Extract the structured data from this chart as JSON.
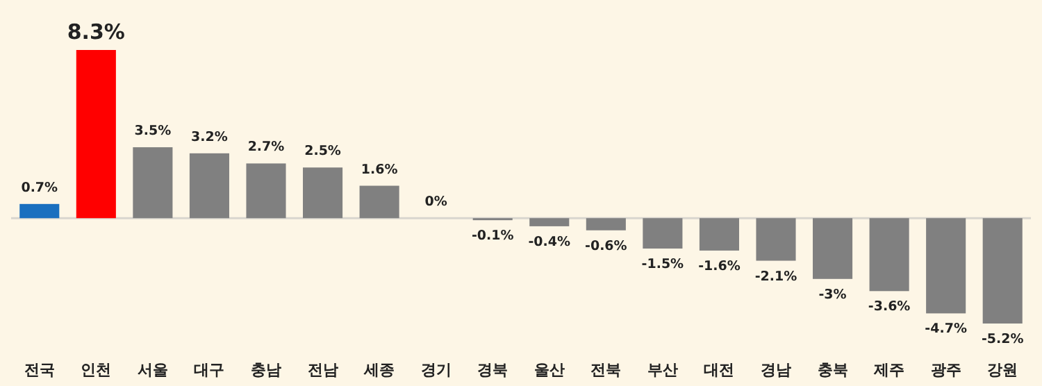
{
  "chart_data": {
    "type": "bar",
    "categories": [
      "전국",
      "인천",
      "서울",
      "대구",
      "충남",
      "전남",
      "세종",
      "경기",
      "경북",
      "울산",
      "전북",
      "부산",
      "대전",
      "경남",
      "충북",
      "제주",
      "광주",
      "강원"
    ],
    "values": [
      0.7,
      8.3,
      3.5,
      3.2,
      2.7,
      2.5,
      1.6,
      0,
      -0.1,
      -0.4,
      -0.6,
      -1.5,
      -1.6,
      -2.1,
      -3,
      -3.6,
      -4.7,
      -5.2
    ],
    "value_labels": [
      "0.7%",
      "8.3%",
      "3.5%",
      "3.2%",
      "2.7%",
      "2.5%",
      "1.6%",
      "0%",
      "-0.1%",
      "-0.4%",
      "-0.6%",
      "-1.5%",
      "-1.6%",
      "-2.1%",
      "-3%",
      "-3.6%",
      "-4.7%",
      "-5.2%"
    ],
    "colors": [
      "#1a6fbf",
      "#ff0000",
      "#808080",
      "#808080",
      "#808080",
      "#808080",
      "#808080",
      "#808080",
      "#808080",
      "#808080",
      "#808080",
      "#808080",
      "#808080",
      "#808080",
      "#808080",
      "#808080",
      "#808080",
      "#808080"
    ]
  }
}
